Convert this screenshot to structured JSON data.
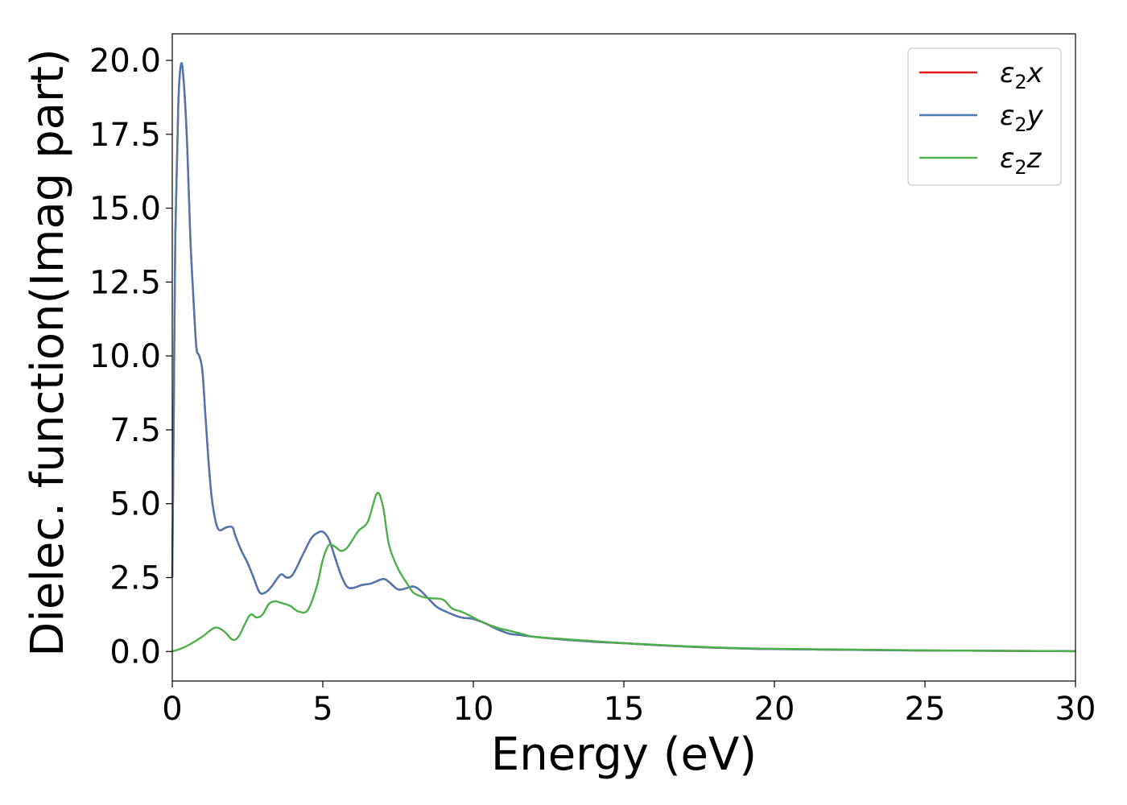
{
  "chart_data": {
    "type": "line",
    "title": "",
    "xlabel": "Energy (eV)",
    "ylabel": "Dielec. function(Imag part)",
    "xlim": [
      0,
      30
    ],
    "ylim": [
      -1.0,
      20.9
    ],
    "xticks": [
      0,
      5,
      10,
      15,
      20,
      25,
      30
    ],
    "xtick_labels": [
      "0",
      "5",
      "10",
      "15",
      "20",
      "25",
      "30"
    ],
    "yticks": [
      0.0,
      2.5,
      5.0,
      7.5,
      10.0,
      12.5,
      15.0,
      17.5,
      20.0
    ],
    "ytick_labels": [
      "0.0",
      "2.5",
      "5.0",
      "7.5",
      "10.0",
      "12.5",
      "15.0",
      "17.5",
      "20.0"
    ],
    "grid": false,
    "legend_position": "top-right",
    "series": [
      {
        "name": "ε2x",
        "legend_base": "ε",
        "legend_sub": "2",
        "legend_tail": "x",
        "color": "#e41a1c",
        "x": [
          0,
          0.05,
          0.1,
          0.2,
          0.3,
          0.4,
          0.5,
          0.6,
          0.7,
          0.8,
          0.9,
          1.0,
          1.1,
          1.2,
          1.3,
          1.4,
          1.5,
          1.6,
          1.8,
          2.0,
          2.1,
          2.3,
          2.5,
          2.7,
          2.9,
          3.1,
          3.3,
          3.6,
          3.8,
          4.0,
          4.3,
          4.6,
          4.8,
          5.0,
          5.2,
          5.4,
          5.6,
          5.8,
          6.0,
          6.3,
          6.6,
          7.0,
          7.2,
          7.5,
          7.8,
          8.0,
          8.2,
          8.5,
          8.8,
          9.2,
          9.6,
          10.0,
          10.4,
          10.8,
          11.2,
          11.6,
          12.0,
          13.0,
          14.0,
          15.0,
          16.0,
          17.0,
          18.0,
          19.0,
          20.0,
          22.0,
          24.0,
          26.0,
          28.0,
          30.0
        ],
        "values": [
          2.5,
          8.0,
          14.0,
          18.5,
          19.9,
          19.0,
          17.0,
          14.0,
          12.0,
          10.3,
          10.0,
          9.5,
          8.0,
          6.5,
          5.3,
          4.6,
          4.2,
          4.1,
          4.2,
          4.2,
          3.9,
          3.4,
          3.0,
          2.5,
          2.0,
          2.0,
          2.2,
          2.6,
          2.5,
          2.6,
          3.2,
          3.8,
          4.0,
          4.05,
          3.8,
          3.2,
          2.6,
          2.2,
          2.15,
          2.25,
          2.3,
          2.45,
          2.35,
          2.1,
          2.15,
          2.2,
          2.1,
          1.8,
          1.5,
          1.3,
          1.15,
          1.1,
          0.95,
          0.75,
          0.6,
          0.55,
          0.5,
          0.4,
          0.33,
          0.28,
          0.22,
          0.17,
          0.13,
          0.1,
          0.08,
          0.06,
          0.04,
          0.03,
          0.02,
          0.01
        ]
      },
      {
        "name": "ε2y",
        "legend_base": "ε",
        "legend_sub": "2",
        "legend_tail": "y",
        "color": "#4a78b4",
        "x": [
          0,
          0.05,
          0.1,
          0.2,
          0.3,
          0.4,
          0.5,
          0.6,
          0.7,
          0.8,
          0.9,
          1.0,
          1.1,
          1.2,
          1.3,
          1.4,
          1.5,
          1.6,
          1.8,
          2.0,
          2.1,
          2.3,
          2.5,
          2.7,
          2.9,
          3.1,
          3.3,
          3.6,
          3.8,
          4.0,
          4.3,
          4.6,
          4.8,
          5.0,
          5.2,
          5.4,
          5.6,
          5.8,
          6.0,
          6.3,
          6.6,
          7.0,
          7.2,
          7.5,
          7.8,
          8.0,
          8.2,
          8.5,
          8.8,
          9.2,
          9.6,
          10.0,
          10.4,
          10.8,
          11.2,
          11.6,
          12.0,
          13.0,
          14.0,
          15.0,
          16.0,
          17.0,
          18.0,
          19.0,
          20.0,
          22.0,
          24.0,
          26.0,
          28.0,
          30.0
        ],
        "values": [
          2.5,
          8.0,
          14.0,
          18.5,
          19.9,
          19.0,
          17.0,
          14.0,
          12.0,
          10.3,
          10.0,
          9.5,
          8.0,
          6.5,
          5.3,
          4.6,
          4.2,
          4.1,
          4.2,
          4.2,
          3.9,
          3.4,
          3.0,
          2.5,
          2.0,
          2.0,
          2.2,
          2.6,
          2.5,
          2.6,
          3.2,
          3.8,
          4.0,
          4.05,
          3.8,
          3.2,
          2.6,
          2.2,
          2.15,
          2.25,
          2.3,
          2.45,
          2.35,
          2.1,
          2.15,
          2.2,
          2.1,
          1.8,
          1.5,
          1.3,
          1.15,
          1.1,
          0.95,
          0.75,
          0.6,
          0.55,
          0.5,
          0.4,
          0.33,
          0.28,
          0.22,
          0.17,
          0.13,
          0.1,
          0.08,
          0.06,
          0.04,
          0.03,
          0.02,
          0.01
        ]
      },
      {
        "name": "ε2z",
        "legend_base": "ε",
        "legend_sub": "2",
        "legend_tail": "z",
        "color": "#4daf4a",
        "x": [
          0,
          0.3,
          0.6,
          1.0,
          1.4,
          1.7,
          2.0,
          2.2,
          2.4,
          2.6,
          2.8,
          3.0,
          3.2,
          3.4,
          3.6,
          3.9,
          4.2,
          4.5,
          4.8,
          5.0,
          5.2,
          5.4,
          5.6,
          5.8,
          6.0,
          6.2,
          6.5,
          6.8,
          7.0,
          7.2,
          7.5,
          7.8,
          8.0,
          8.3,
          8.6,
          9.0,
          9.3,
          9.6,
          10.0,
          10.4,
          10.8,
          11.2,
          11.6,
          12.0,
          13.0,
          14.0,
          15.0,
          16.0,
          17.0,
          18.0,
          19.0,
          20.0,
          22.0,
          24.0,
          26.0,
          28.0,
          30.0
        ],
        "values": [
          0.0,
          0.1,
          0.25,
          0.5,
          0.8,
          0.7,
          0.4,
          0.5,
          0.9,
          1.25,
          1.15,
          1.25,
          1.6,
          1.7,
          1.65,
          1.55,
          1.35,
          1.4,
          2.2,
          3.1,
          3.6,
          3.55,
          3.4,
          3.5,
          3.8,
          4.1,
          4.4,
          5.35,
          4.9,
          3.6,
          2.8,
          2.3,
          2.0,
          1.85,
          1.8,
          1.75,
          1.45,
          1.35,
          1.15,
          0.95,
          0.8,
          0.7,
          0.6,
          0.5,
          0.42,
          0.35,
          0.28,
          0.23,
          0.18,
          0.14,
          0.11,
          0.09,
          0.07,
          0.05,
          0.03,
          0.02,
          0.01
        ]
      }
    ]
  }
}
